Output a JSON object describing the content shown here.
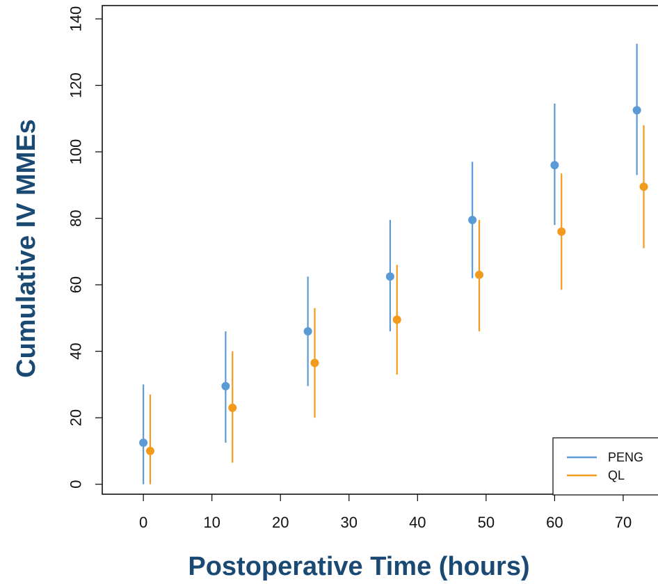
{
  "chart_data": {
    "type": "scatter",
    "xlabel": "Postoperative Time (hours)",
    "ylabel": "Cumulative IV MMEs",
    "xlim": [
      -6,
      76.5
    ],
    "ylim": [
      -3,
      144
    ],
    "x_ticks": [
      0,
      10,
      20,
      30,
      40,
      50,
      60,
      70
    ],
    "y_ticks": [
      0,
      20,
      40,
      60,
      80,
      100,
      120,
      140
    ],
    "grid": false,
    "legend_position": "bottom-right",
    "colors": {
      "PENG": "#5b9bd5",
      "QL": "#f29a1b",
      "axis_title": "#1a4a74"
    },
    "series": [
      {
        "name": "PENG",
        "x": [
          0,
          12,
          24,
          36,
          48,
          60,
          72
        ],
        "y": [
          12.5,
          29.5,
          46,
          62.5,
          79.5,
          96,
          112.5
        ],
        "lower": [
          0,
          12.5,
          29.5,
          46,
          62,
          78,
          93
        ],
        "upper": [
          30,
          46,
          62.5,
          79.5,
          97,
          114.5,
          132.5
        ]
      },
      {
        "name": "QL",
        "x": [
          1,
          13,
          25,
          37,
          49,
          61,
          73
        ],
        "y": [
          10,
          23,
          36.5,
          49.5,
          63,
          76,
          89.5
        ],
        "lower": [
          0,
          6.5,
          20,
          33,
          46,
          58.5,
          71
        ],
        "upper": [
          27,
          40,
          53,
          66,
          79.5,
          93.5,
          108
        ]
      }
    ]
  }
}
